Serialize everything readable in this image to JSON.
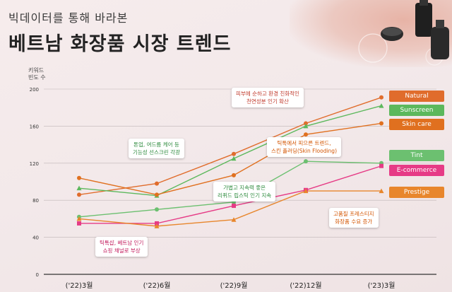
{
  "header": {
    "subtitle": "빅데이터를 통해 바라본",
    "title": "베트남 화장품 시장 트렌드"
  },
  "chart_data": {
    "type": "line",
    "ylabel": "키워드 빈도 수",
    "ylim": [
      0,
      200
    ],
    "y_ticks": [
      "0",
      "40",
      "80",
      "120",
      "160",
      "200"
    ],
    "categories": [
      "('22)3월",
      "('22)6월",
      "('22)9월",
      "('22)12월",
      "('23)3월"
    ],
    "series": [
      {
        "name": "Natural",
        "color": "#e06c2c",
        "values": [
          86,
          98,
          130,
          163,
          191
        ]
      },
      {
        "name": "Sunscreen",
        "color": "#5cb85c",
        "values": [
          93,
          85,
          125,
          160,
          182
        ]
      },
      {
        "name": "Skin care",
        "color": "#e0701f",
        "values": [
          104,
          86,
          107,
          151,
          163
        ]
      },
      {
        "name": "Tint",
        "color": "#6cc070",
        "values": [
          62,
          70,
          78,
          122,
          120
        ]
      },
      {
        "name": "E-commerce",
        "color": "#e63b86",
        "values": [
          55,
          55,
          74,
          91,
          117
        ]
      },
      {
        "name": "Prestige",
        "color": "#e8862c",
        "values": [
          60,
          52,
          59,
          90,
          90
        ]
      }
    ],
    "legend_position": "right",
    "annotations": [
      {
        "text": [
          "피부에 순하고 환경 친화적인",
          "천연성분 인기 확산"
        ],
        "color": "#c0392b"
      },
      {
        "text": [
          "톤업, 여드름 케어 등",
          "기능성 선스크린 각광"
        ],
        "color": "#2e8b3e"
      },
      {
        "text": [
          "틱톡에서 피으른 트렌드,",
          "스킨 플러딩(Skin Flooding)"
        ],
        "color": "#d35400"
      },
      {
        "text": [
          "가볍고 지속력 좋은",
          "리퀴드 립스틱 인기 지속"
        ],
        "color": "#2e8b3e"
      },
      {
        "text": [
          "틱톡샵, 베트남 인기",
          "쇼핑 채널로 부상"
        ],
        "color": "#c2185b"
      },
      {
        "text": [
          "고품질 프레스티지",
          "화장품 수요 증가"
        ],
        "color": "#d35400"
      }
    ]
  }
}
